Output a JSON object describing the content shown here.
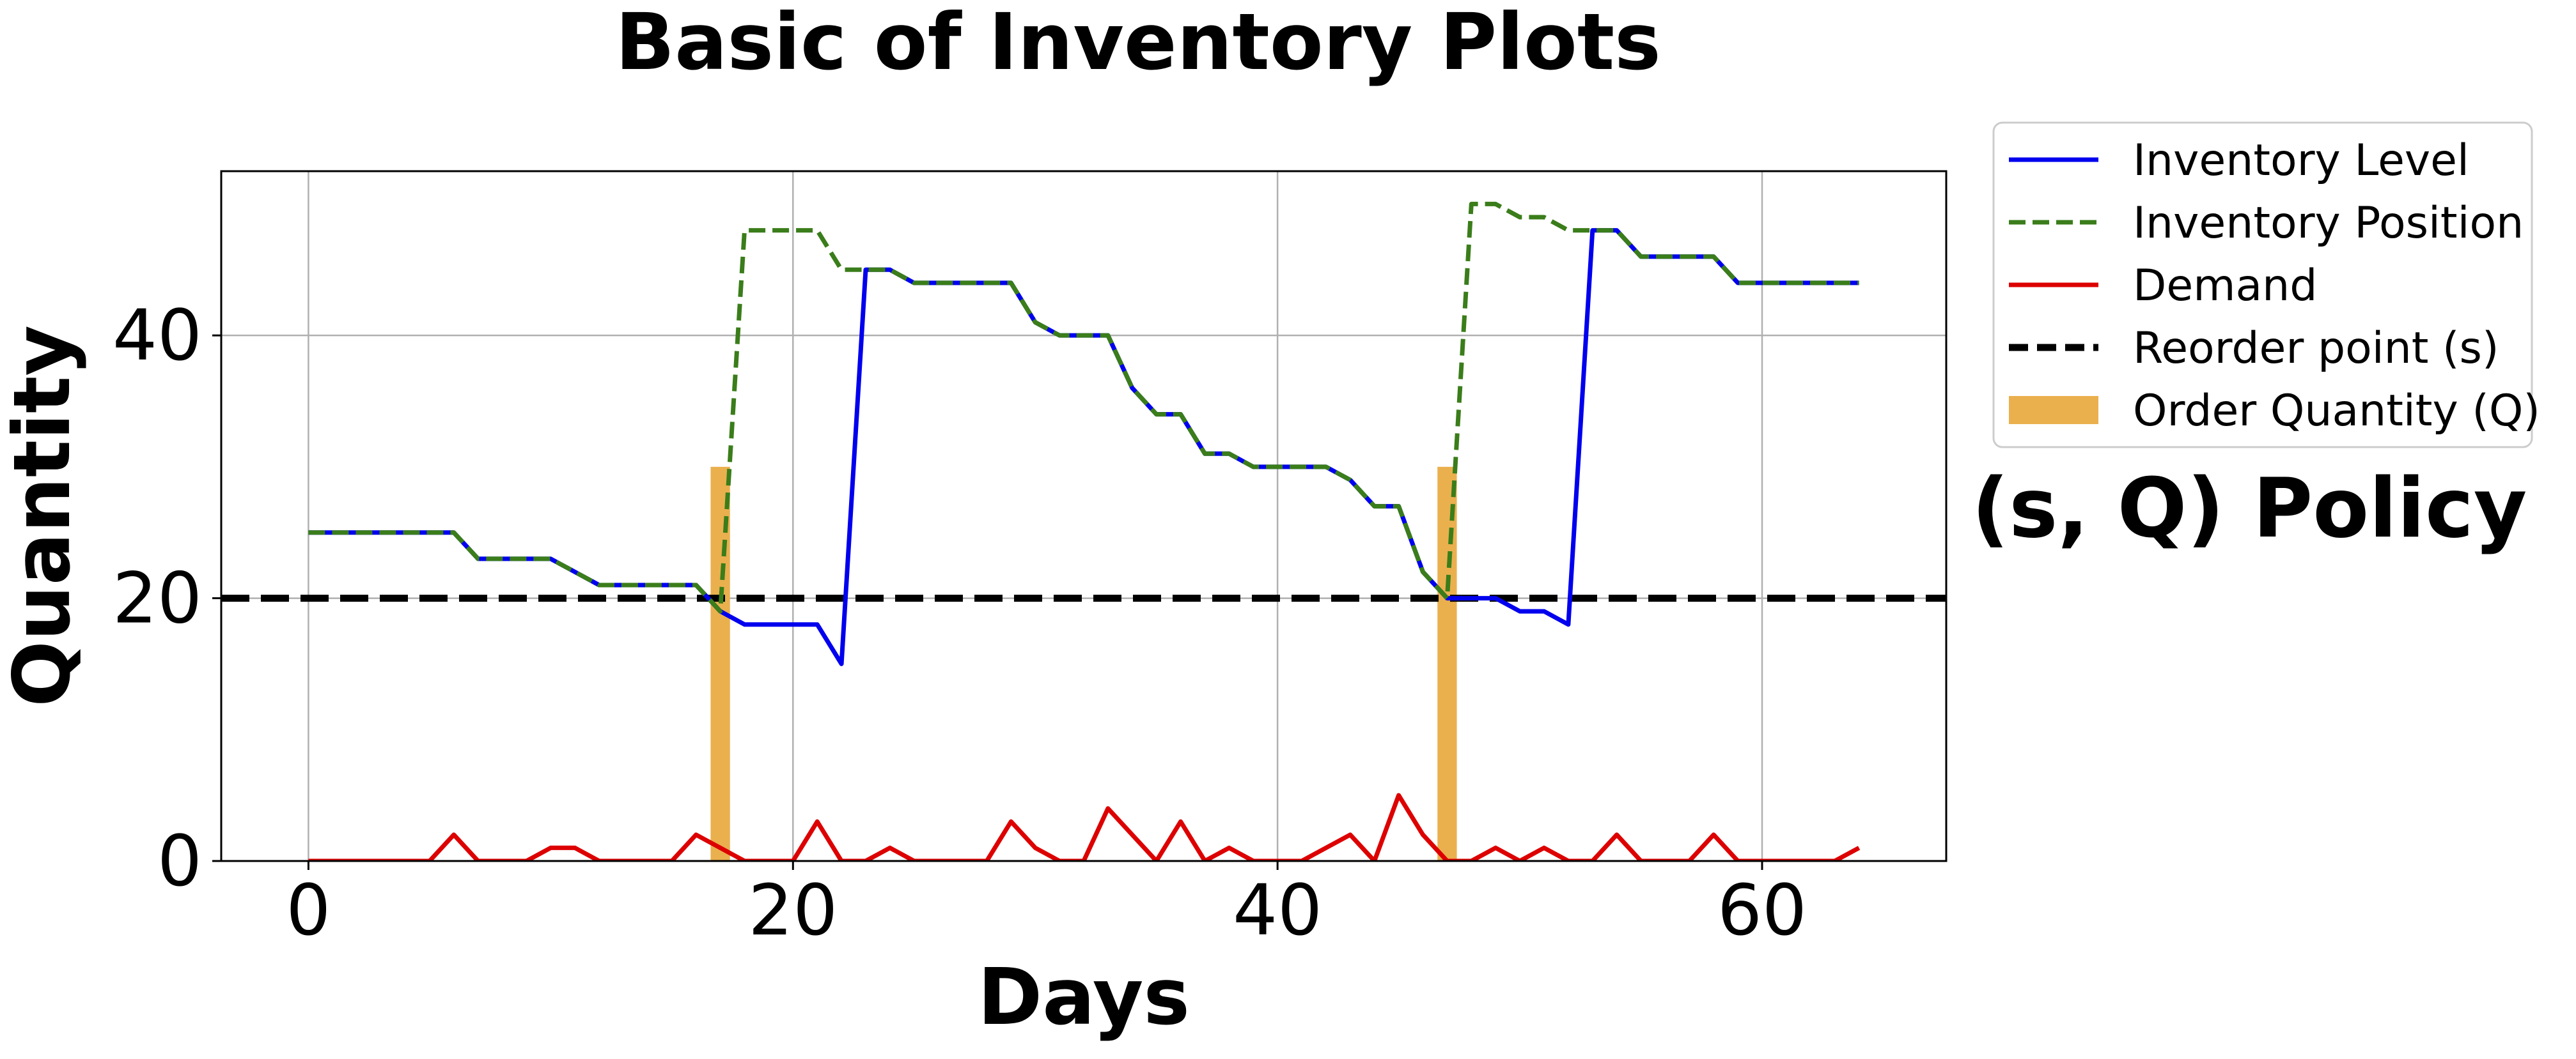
{
  "chart_data": {
    "type": "line",
    "title": "Basic of Inventory Plots",
    "xlabel": "Days",
    "ylabel": "Quantity",
    "side_label": "(s, Q) Policy",
    "xlim": [
      -3.6,
      67.6
    ],
    "ylim": [
      0,
      52.5
    ],
    "xticks": [
      0,
      20,
      40,
      60
    ],
    "yticks": [
      0,
      20,
      40
    ],
    "grid": true,
    "legend_position": "outside-right-top",
    "x": [
      0,
      1,
      2,
      3,
      4,
      5,
      6,
      7,
      8,
      9,
      10,
      11,
      12,
      13,
      14,
      15,
      16,
      17,
      18,
      19,
      20,
      21,
      22,
      23,
      24,
      25,
      26,
      27,
      28,
      29,
      30,
      31,
      32,
      33,
      34,
      35,
      36,
      37,
      38,
      39,
      40,
      41,
      42,
      43,
      44,
      45,
      46,
      47,
      48,
      49,
      50,
      51,
      52,
      53,
      54,
      55,
      56,
      57,
      58,
      59,
      60,
      61,
      62,
      63,
      64
    ],
    "series": [
      {
        "name": "Inventory Level",
        "style": "solid",
        "color": "#0000ee",
        "values": [
          25,
          25,
          25,
          25,
          25,
          25,
          25,
          23,
          23,
          23,
          23,
          22,
          21,
          21,
          21,
          21,
          21,
          19,
          18,
          18,
          18,
          18,
          15,
          45,
          45,
          44,
          44,
          44,
          44,
          44,
          41,
          40,
          40,
          40,
          36,
          34,
          34,
          31,
          31,
          30,
          30,
          30,
          30,
          29,
          27,
          27,
          22,
          20,
          20,
          20,
          19,
          19,
          18,
          48,
          48,
          46,
          46,
          46,
          46,
          44,
          44,
          44,
          44,
          44,
          44
        ]
      },
      {
        "name": "Inventory Position",
        "style": "dashed",
        "color": "#3a7d1a",
        "values": [
          25,
          25,
          25,
          25,
          25,
          25,
          25,
          23,
          23,
          23,
          23,
          22,
          21,
          21,
          21,
          21,
          21,
          19,
          48,
          48,
          48,
          48,
          45,
          45,
          45,
          44,
          44,
          44,
          44,
          44,
          41,
          40,
          40,
          40,
          36,
          34,
          34,
          31,
          31,
          30,
          30,
          30,
          30,
          29,
          27,
          27,
          22,
          20,
          50,
          50,
          49,
          49,
          48,
          48,
          48,
          46,
          46,
          46,
          46,
          44,
          44,
          44,
          44,
          44,
          44
        ]
      },
      {
        "name": "Demand",
        "style": "solid",
        "color": "#dd0000",
        "values": [
          0,
          0,
          0,
          0,
          0,
          0,
          2,
          0,
          0,
          0,
          1,
          1,
          0,
          0,
          0,
          0,
          2,
          1,
          0,
          0,
          0,
          3,
          0,
          0,
          1,
          0,
          0,
          0,
          0,
          3,
          1,
          0,
          0,
          4,
          2,
          0,
          3,
          0,
          1,
          0,
          0,
          0,
          1,
          2,
          0,
          5,
          2,
          0,
          0,
          1,
          0,
          1,
          0,
          0,
          2,
          0,
          0,
          0,
          2,
          0,
          0,
          0,
          0,
          0,
          1
        ]
      },
      {
        "name": "Reorder point (s)",
        "style": "dashed",
        "color": "#000000",
        "value": 20
      },
      {
        "name": "Order Quantity (Q)",
        "type": "bar",
        "color": "#eab04e",
        "x": [
          17,
          47
        ],
        "values": [
          30,
          30
        ]
      }
    ]
  }
}
